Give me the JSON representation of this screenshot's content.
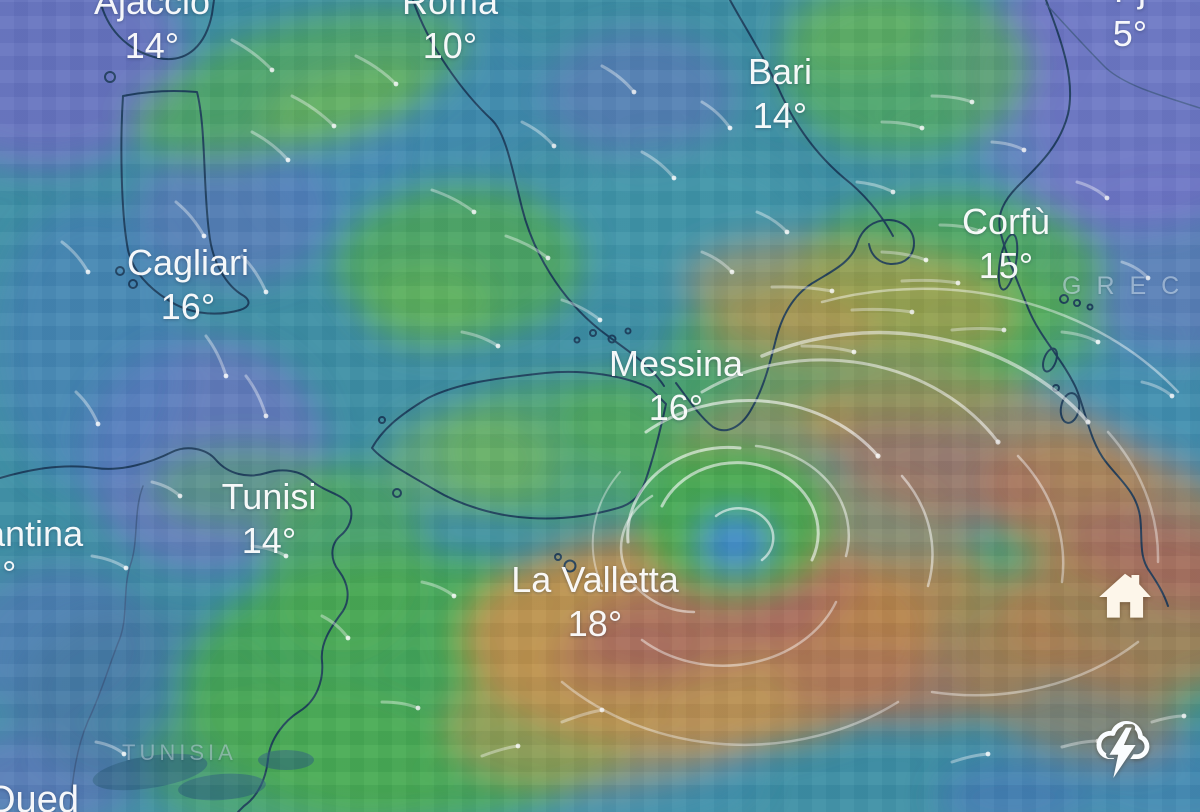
{
  "map": {
    "kind": "wind-temperature weather map",
    "cities": [
      {
        "id": "ajaccio",
        "name": "Ajaccio",
        "temp": "14°"
      },
      {
        "id": "roma",
        "name": "Roma",
        "temp": "10°"
      },
      {
        "id": "bari",
        "name": "Bari",
        "temp": "14°"
      },
      {
        "id": "cagliari",
        "name": "Cagliari",
        "temp": "16°"
      },
      {
        "id": "corfu",
        "name": "Corfù",
        "temp": "15°"
      },
      {
        "id": "messina",
        "name": "Messina",
        "temp": "16°"
      },
      {
        "id": "tunisi",
        "name": "Tunisi",
        "temp": "14°"
      },
      {
        "id": "la-valletta",
        "name": "La Valletta",
        "temp": "18°"
      },
      {
        "id": "clipped-top-right",
        "name": "Pj",
        "temp": "5°"
      },
      {
        "id": "clipped-left-edge",
        "name": "antina",
        "temp": "°"
      },
      {
        "id": "clipped-bottom-left",
        "name": "Oued",
        "temp": ""
      }
    ],
    "regions": [
      {
        "id": "grecia-partial",
        "text": "GREC"
      },
      {
        "id": "tunisia",
        "text": "TUNISIA"
      }
    ],
    "icons": [
      {
        "name": "home-icon"
      },
      {
        "name": "storm-cloud-lightning-icon"
      }
    ],
    "colors": {
      "sea_base": "#3e90a6",
      "calm_purple": "#7477c9",
      "breeze_blue": "#4a80c0",
      "moderate_green": "#4ead4d",
      "strong_orange": "#c08648",
      "severe_maroon": "#a35f60",
      "cyclone_eye_blue": "#3f8ed2",
      "coastline": "#1b3a58",
      "streamline": "#ffffff"
    }
  }
}
